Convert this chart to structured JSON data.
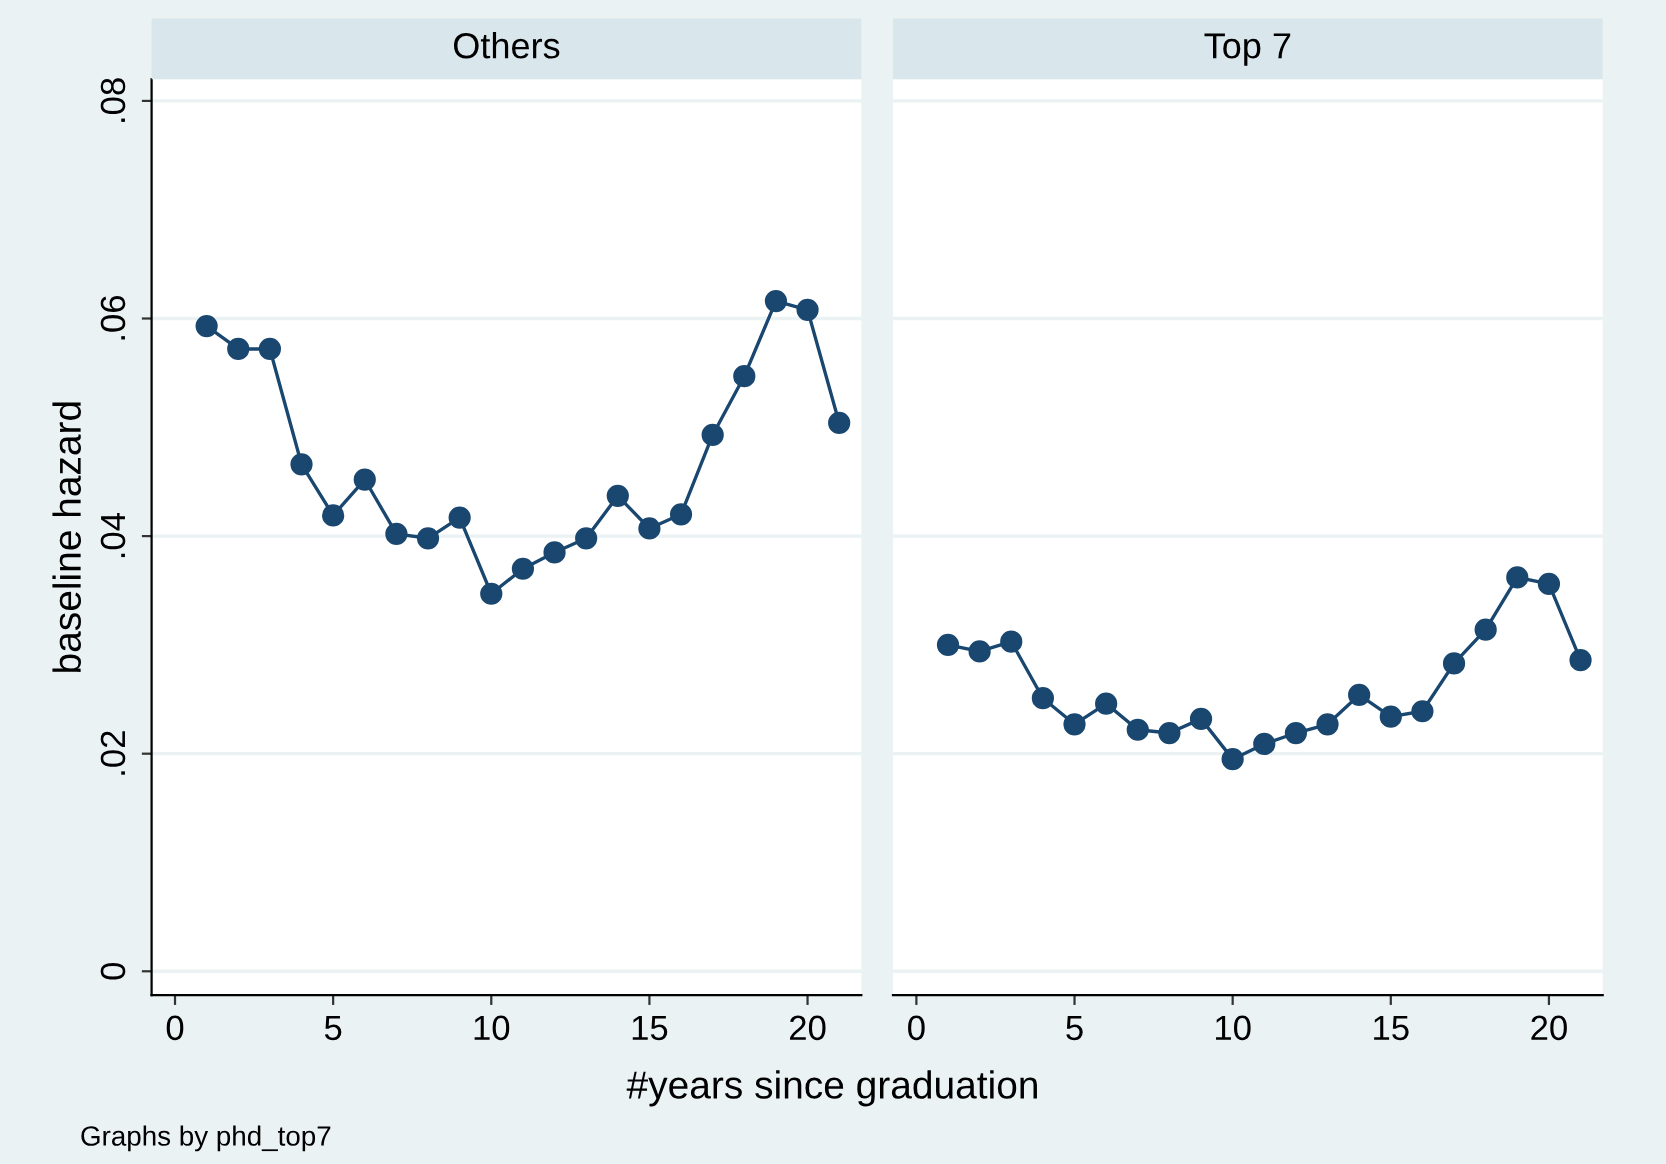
{
  "chart_data": [
    {
      "type": "line",
      "title": "Others",
      "xlabel": "#years since graduation",
      "ylabel": "baseline hazard",
      "annotations": [
        "Graphs by phd_top7"
      ],
      "x": [
        1,
        2,
        3,
        4,
        5,
        6,
        7,
        8,
        9,
        10,
        11,
        12,
        13,
        14,
        15,
        16,
        17,
        18,
        19,
        20,
        21
      ],
      "series": [
        {
          "color": "#1a476f",
          "values": [
            0.0593,
            0.0572,
            0.0572,
            0.0466,
            0.0419,
            0.0452,
            0.0402,
            0.0398,
            0.0417,
            0.0347,
            0.037,
            0.0385,
            0.0398,
            0.0437,
            0.0407,
            0.042,
            0.0493,
            0.0547,
            0.0616,
            0.0608,
            0.0504
          ]
        }
      ],
      "xlim": [
        -0.74,
        21.7
      ],
      "ylim": [
        -0.0022,
        0.082
      ],
      "xticks": [
        0,
        5,
        10,
        15,
        20
      ],
      "yticks": [
        {
          "value": 0,
          "label": "0"
        },
        {
          "value": 0.02,
          "label": ".02"
        },
        {
          "value": 0.04,
          "label": ".04"
        },
        {
          "value": 0.06,
          "label": ".06"
        },
        {
          "value": 0.08,
          "label": ".08"
        }
      ],
      "grid": "y",
      "marker": "circle",
      "line_style": "solid"
    },
    {
      "type": "line",
      "title": "Top 7",
      "x": [
        1,
        2,
        3,
        4,
        5,
        6,
        7,
        8,
        9,
        10,
        11,
        12,
        13,
        14,
        15,
        16,
        17,
        18,
        19,
        20,
        21
      ],
      "series": [
        {
          "color": "#1a476f",
          "values": [
            0.03,
            0.0294,
            0.0303,
            0.0251,
            0.0227,
            0.0246,
            0.0222,
            0.0219,
            0.0232,
            0.0195,
            0.0209,
            0.0219,
            0.0227,
            0.0254,
            0.0234,
            0.0239,
            0.0283,
            0.0314,
            0.0362,
            0.0356,
            0.0286
          ]
        }
      ],
      "xlim": [
        -0.74,
        21.7
      ],
      "ylim": [
        -0.0022,
        0.082
      ],
      "xticks": [
        0,
        5,
        10,
        15,
        20
      ],
      "yticks": [
        {
          "value": 0,
          "label": null
        },
        {
          "value": 0.02,
          "label": null
        },
        {
          "value": 0.04,
          "label": null
        },
        {
          "value": 0.06,
          "label": null
        },
        {
          "value": 0.08,
          "label": null
        }
      ],
      "grid": "y",
      "marker": "circle",
      "line_style": "solid",
      "tick_labels": "x"
    }
  ]
}
